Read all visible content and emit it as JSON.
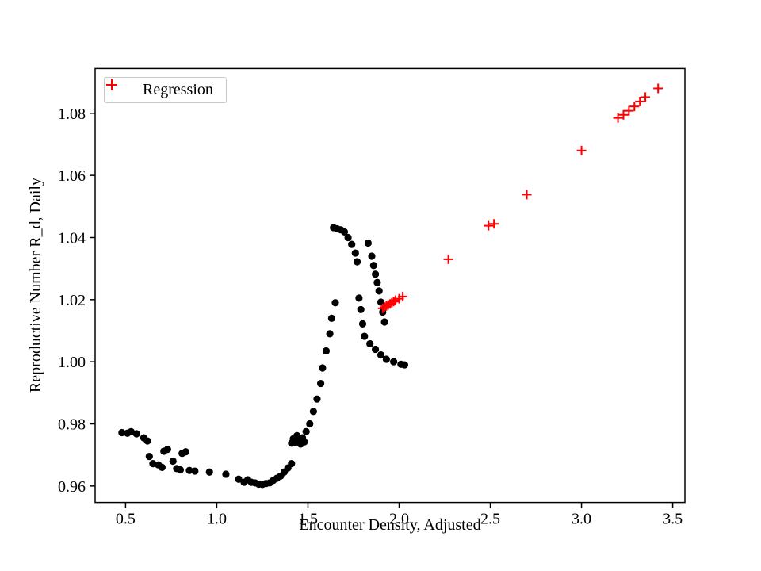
{
  "chart_data": {
    "type": "scatter",
    "title": "",
    "xlabel": "Encounter Density, Adjusted",
    "ylabel": "Reproductive Number R_d, Daily",
    "xlim": [
      0.333,
      3.567
    ],
    "ylim": [
      0.9547,
      1.0944
    ],
    "xticks": [
      0.5,
      1.0,
      1.5,
      2.0,
      2.5,
      3.0,
      3.5
    ],
    "xtick_labels": [
      "0.5",
      "1.0",
      "1.5",
      "2.0",
      "2.5",
      "3.0",
      "3.5"
    ],
    "yticks": [
      0.96,
      0.98,
      1.0,
      1.02,
      1.04,
      1.06,
      1.08
    ],
    "ytick_labels": [
      "0.96",
      "0.98",
      "1.00",
      "1.02",
      "1.04",
      "1.06",
      "1.08"
    ],
    "grid": false,
    "legend": {
      "position": "upper-left",
      "entries": [
        {
          "label": "Regression",
          "marker": "plus",
          "color": "#ff0000"
        }
      ]
    },
    "colors": {
      "background": "#ffffff",
      "axes": "#000000",
      "black_series": "#000000",
      "red_series": "#ff0000",
      "legend_border": "#c9c9c9"
    },
    "series": [
      {
        "name": "data",
        "marker": "circle",
        "color": "#000000",
        "points": [
          [
            0.48,
            0.9772
          ],
          [
            0.51,
            0.977
          ],
          [
            0.53,
            0.9775
          ],
          [
            0.56,
            0.9768
          ],
          [
            0.6,
            0.9755
          ],
          [
            0.62,
            0.9745
          ],
          [
            0.63,
            0.9695
          ],
          [
            0.65,
            0.9672
          ],
          [
            0.68,
            0.9668
          ],
          [
            0.7,
            0.966
          ],
          [
            0.71,
            0.9712
          ],
          [
            0.73,
            0.9718
          ],
          [
            0.76,
            0.968
          ],
          [
            0.78,
            0.9656
          ],
          [
            0.8,
            0.9652
          ],
          [
            0.81,
            0.9705
          ],
          [
            0.83,
            0.971
          ],
          [
            0.85,
            0.965
          ],
          [
            0.88,
            0.9648
          ],
          [
            0.96,
            0.9645
          ],
          [
            1.05,
            0.9638
          ],
          [
            1.12,
            0.9622
          ],
          [
            1.15,
            0.9612
          ],
          [
            1.17,
            0.962
          ],
          [
            1.19,
            0.9612
          ],
          [
            1.21,
            0.961
          ],
          [
            1.23,
            0.9606
          ],
          [
            1.25,
            0.9605
          ],
          [
            1.27,
            0.9608
          ],
          [
            1.29,
            0.961
          ],
          [
            1.31,
            0.9618
          ],
          [
            1.33,
            0.9625
          ],
          [
            1.35,
            0.9632
          ],
          [
            1.37,
            0.9645
          ],
          [
            1.39,
            0.9658
          ],
          [
            1.41,
            0.9672
          ],
          [
            1.41,
            0.9738
          ],
          [
            1.42,
            0.9752
          ],
          [
            1.43,
            0.974
          ],
          [
            1.44,
            0.9762
          ],
          [
            1.45,
            0.9748
          ],
          [
            1.46,
            0.9735
          ],
          [
            1.47,
            0.9755
          ],
          [
            1.48,
            0.9742
          ],
          [
            1.49,
            0.9775
          ],
          [
            1.51,
            0.98
          ],
          [
            1.53,
            0.984
          ],
          [
            1.55,
            0.988
          ],
          [
            1.57,
            0.993
          ],
          [
            1.58,
            0.998
          ],
          [
            1.6,
            1.0035
          ],
          [
            1.62,
            1.009
          ],
          [
            1.63,
            1.014
          ],
          [
            1.65,
            1.019
          ],
          [
            1.64,
            1.0432
          ],
          [
            1.66,
            1.0428
          ],
          [
            1.68,
            1.0425
          ],
          [
            1.7,
            1.0418
          ],
          [
            1.72,
            1.04
          ],
          [
            1.74,
            1.0378
          ],
          [
            1.76,
            1.035
          ],
          [
            1.77,
            1.0322
          ],
          [
            1.83,
            1.0382
          ],
          [
            1.85,
            1.034
          ],
          [
            1.86,
            1.031
          ],
          [
            1.87,
            1.0282
          ],
          [
            1.88,
            1.0255
          ],
          [
            1.89,
            1.0228
          ],
          [
            1.9,
            1.0192
          ],
          [
            1.91,
            1.016
          ],
          [
            1.92,
            1.0128
          ],
          [
            1.78,
            1.0205
          ],
          [
            1.79,
            1.0168
          ],
          [
            1.8,
            1.0122
          ],
          [
            1.81,
            1.0082
          ],
          [
            1.84,
            1.0058
          ],
          [
            1.87,
            1.004
          ],
          [
            1.9,
            1.0022
          ],
          [
            1.93,
            1.0008
          ],
          [
            1.97,
            1.0
          ],
          [
            2.01,
            0.9992
          ],
          [
            2.03,
            0.999
          ]
        ]
      },
      {
        "name": "Regression",
        "marker": "plus",
        "color": "#ff0000",
        "points": [
          [
            1.91,
            1.0172
          ],
          [
            1.92,
            1.0176
          ],
          [
            1.93,
            1.018
          ],
          [
            1.94,
            1.0183
          ],
          [
            1.95,
            1.0186
          ],
          [
            1.96,
            1.019
          ],
          [
            1.97,
            1.0194
          ],
          [
            1.98,
            1.0198
          ],
          [
            2.0,
            1.0203
          ],
          [
            2.02,
            1.021
          ],
          [
            2.27,
            1.033
          ],
          [
            2.49,
            1.0438
          ],
          [
            2.52,
            1.0444
          ],
          [
            2.7,
            1.0538
          ],
          [
            3.0,
            1.068
          ],
          [
            3.2,
            1.0785
          ],
          [
            3.23,
            1.0795
          ],
          [
            3.26,
            1.0808
          ],
          [
            3.29,
            1.0822
          ],
          [
            3.32,
            1.0838
          ],
          [
            3.35,
            1.0852
          ],
          [
            3.42,
            1.088
          ]
        ]
      }
    ]
  }
}
